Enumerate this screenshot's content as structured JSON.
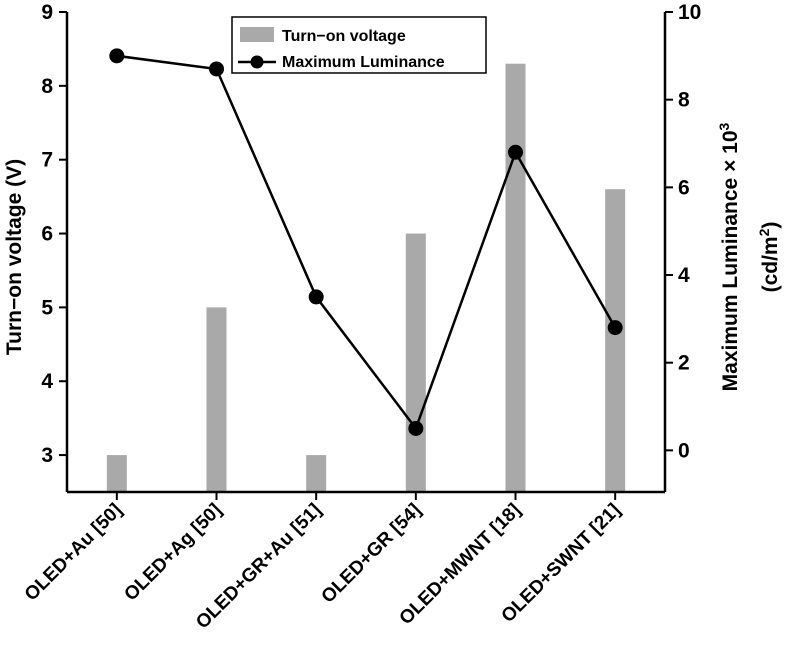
{
  "chart_data": {
    "type": "bar+line",
    "categories": [
      "OLED+Au [50]",
      "OLED+Ag [50]",
      "OLED+GR+Au [51]",
      "OLED+GR [54]",
      "OLED+MWNT [18]",
      "OLED+SWNT [21]"
    ],
    "series": [
      {
        "name": "Turn−on voltage",
        "type": "bar",
        "axis": "left",
        "values": [
          3.0,
          5.0,
          3.0,
          6.0,
          8.3,
          6.6
        ],
        "color": "#a9a9a9"
      },
      {
        "name": "Maximum Luminance",
        "type": "line",
        "axis": "right",
        "values": [
          9.0,
          8.7,
          3.5,
          0.5,
          6.8,
          2.8
        ],
        "color": "#000000"
      }
    ],
    "y_left": {
      "label": "Turn−on voltage (V)",
      "lim": [
        2.5,
        9.0
      ],
      "ticks": [
        3,
        4,
        5,
        6,
        7,
        8,
        9
      ],
      "tick_labels": [
        "3",
        "4",
        "5",
        "6",
        "7",
        "8",
        "9"
      ]
    },
    "y_right": {
      "label_line1_prefix": "Maximum Luminance × 10",
      "label_line1_sup": "3",
      "label_line2_prefix": "(cd/m",
      "label_line2_sup": "2",
      "label_line2_suffix": ")",
      "lim": [
        -0.95,
        10.0
      ],
      "ticks": [
        0,
        2,
        4,
        6,
        8,
        10
      ],
      "tick_labels": [
        "0",
        "2",
        "4",
        "6",
        "8",
        "10"
      ]
    },
    "legend": {
      "position": "top-center",
      "entries": [
        "Turn−on voltage",
        "Maximum Luminance"
      ]
    },
    "grid": false
  }
}
